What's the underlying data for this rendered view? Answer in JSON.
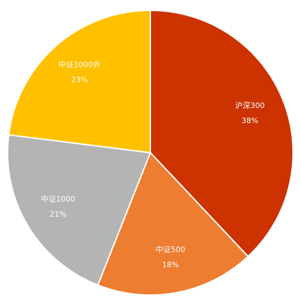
{
  "chart_data": {
    "type": "pie",
    "categories": [
      "沪深300",
      "中证500",
      "中证1000",
      "中证1000外"
    ],
    "values": [
      38,
      18,
      21,
      23
    ],
    "value_labels": [
      "38%",
      "18%",
      "21%",
      "23%"
    ],
    "colors": [
      "#cc3300",
      "#ed7d31",
      "#b4b4b4",
      "#ffc000"
    ]
  }
}
